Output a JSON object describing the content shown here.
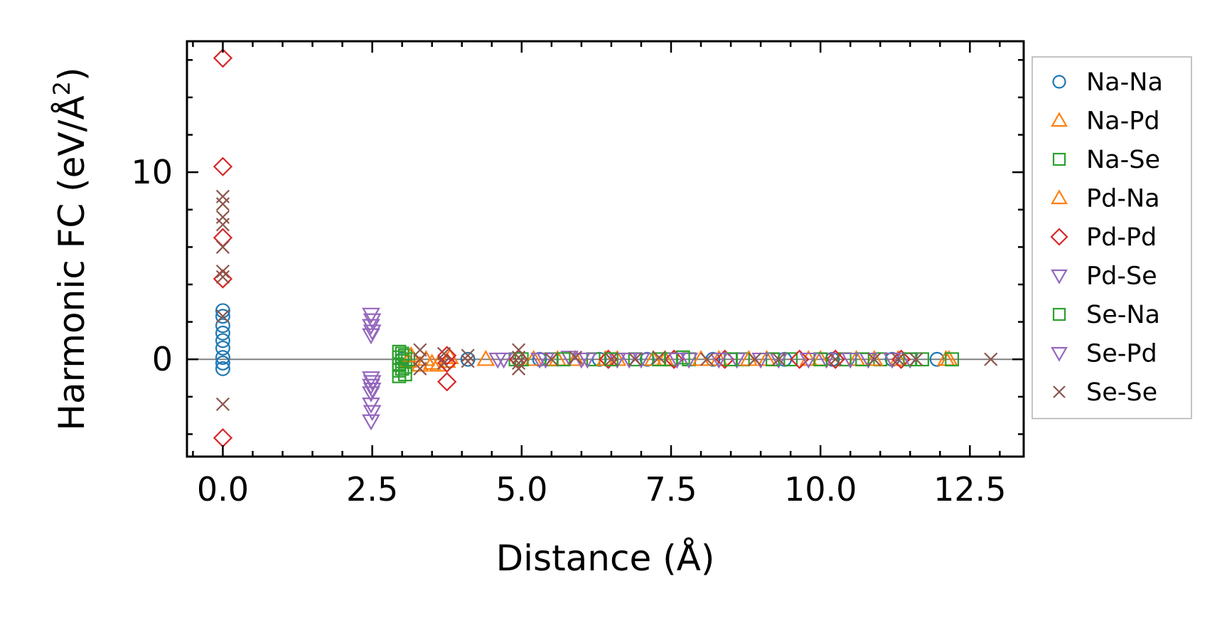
{
  "chart_data": {
    "type": "scatter",
    "title": "",
    "xlabel": "Distance (Å)",
    "ylabel_prefix": "Harmonic FC (eV/Å",
    "ylabel_sup": "2",
    "ylabel_suffix": ")",
    "xlim": [
      -0.6,
      13.4
    ],
    "ylim": [
      -5.2,
      17.0
    ],
    "xticks": [
      0.0,
      2.5,
      5.0,
      7.5,
      10.0,
      12.5
    ],
    "xtick_labels": [
      "0.0",
      "2.5",
      "5.0",
      "7.5",
      "10.0",
      "12.5"
    ],
    "yticks": [
      0,
      10
    ],
    "ytick_labels": [
      "0",
      "10"
    ],
    "grid": false,
    "zero_line": true,
    "legend_position": "right",
    "series": [
      {
        "name": "Na-Na",
        "marker": "circle",
        "color": "#1f77b4",
        "points": [
          [
            0,
            2.6
          ],
          [
            0,
            2.3
          ],
          [
            0,
            1.8
          ],
          [
            0,
            1.4
          ],
          [
            0,
            1.0
          ],
          [
            0,
            0.6
          ],
          [
            0,
            0.1
          ],
          [
            0,
            -0.2
          ],
          [
            0,
            -0.5
          ],
          [
            3.0,
            0.0
          ],
          [
            4.1,
            0.0
          ],
          [
            5.3,
            0.0
          ],
          [
            6.3,
            0.0
          ],
          [
            7.1,
            0.0
          ],
          [
            8.2,
            0.0
          ],
          [
            9.4,
            0.0
          ],
          [
            10.2,
            0.0
          ],
          [
            11.2,
            0.0
          ],
          [
            11.95,
            0.0
          ]
        ]
      },
      {
        "name": "Na-Pd",
        "marker": "triangle-up",
        "color": "#ff7f0e",
        "points": [
          [
            3.1,
            -0.1
          ],
          [
            3.3,
            -0.3
          ],
          [
            3.5,
            -0.2
          ],
          [
            3.75,
            -0.1
          ],
          [
            5.2,
            0.0
          ],
          [
            5.9,
            0.0
          ],
          [
            6.6,
            0.0
          ],
          [
            7.4,
            0.0
          ],
          [
            8.3,
            0.0
          ],
          [
            9.1,
            0.0
          ],
          [
            9.8,
            0.0
          ],
          [
            10.6,
            0.0
          ],
          [
            11.3,
            0.0
          ],
          [
            12.1,
            0.0
          ]
        ]
      },
      {
        "name": "Na-Se",
        "marker": "square",
        "color": "#2ca02c",
        "points": [
          [
            2.95,
            0.4
          ],
          [
            2.95,
            0.1
          ],
          [
            2.95,
            -0.3
          ],
          [
            2.95,
            -0.6
          ],
          [
            2.95,
            -0.9
          ],
          [
            3.05,
            0.2
          ],
          [
            3.05,
            -0.4
          ],
          [
            3.1,
            0.0
          ],
          [
            4.9,
            0.0
          ],
          [
            5.5,
            0.0
          ],
          [
            6.2,
            0.0
          ],
          [
            6.9,
            0.0
          ],
          [
            7.5,
            0.0
          ],
          [
            7.8,
            0.0
          ],
          [
            8.7,
            0.0
          ],
          [
            9.5,
            0.0
          ],
          [
            10.4,
            0.0
          ],
          [
            11.0,
            0.0
          ],
          [
            11.7,
            0.0
          ]
        ]
      },
      {
        "name": "Pd-Na",
        "marker": "triangle-up",
        "color": "#ff7f0e",
        "points": [
          [
            3.15,
            0.2
          ],
          [
            3.4,
            0.0
          ],
          [
            3.6,
            -0.3
          ],
          [
            3.8,
            0.1
          ],
          [
            4.4,
            0.0
          ],
          [
            5.6,
            0.0
          ],
          [
            6.4,
            0.0
          ],
          [
            7.2,
            0.0
          ],
          [
            8.0,
            0.0
          ],
          [
            8.8,
            0.0
          ],
          [
            10.0,
            0.0
          ],
          [
            10.9,
            0.0
          ],
          [
            12.15,
            0.0
          ]
        ]
      },
      {
        "name": "Pd-Pd",
        "marker": "diamond",
        "color": "#d62728",
        "points": [
          [
            0,
            16.1
          ],
          [
            0,
            10.3
          ],
          [
            0,
            6.5
          ],
          [
            0,
            4.3
          ],
          [
            0,
            -4.2
          ],
          [
            3.75,
            0.2
          ],
          [
            3.75,
            -0.2
          ],
          [
            3.75,
            -1.2
          ],
          [
            4.95,
            0.0
          ],
          [
            6.45,
            0.0
          ],
          [
            7.55,
            0.0
          ],
          [
            8.4,
            0.0
          ],
          [
            9.65,
            0.0
          ],
          [
            10.25,
            0.0
          ],
          [
            11.35,
            0.0
          ]
        ]
      },
      {
        "name": "Pd-Se",
        "marker": "triangle-down",
        "color": "#9467bd",
        "points": [
          [
            2.48,
            2.4
          ],
          [
            2.48,
            1.8
          ],
          [
            2.48,
            1.3
          ],
          [
            2.48,
            -1.0
          ],
          [
            2.48,
            -1.4
          ],
          [
            2.48,
            -1.8
          ],
          [
            2.48,
            -2.4
          ],
          [
            2.48,
            -3.3
          ],
          [
            4.6,
            0.0
          ],
          [
            5.3,
            0.0
          ],
          [
            5.8,
            0.1
          ],
          [
            6.1,
            0.0
          ],
          [
            6.6,
            0.0
          ],
          [
            7.0,
            0.0
          ],
          [
            7.8,
            0.0
          ],
          [
            8.6,
            0.0
          ],
          [
            9.3,
            0.0
          ],
          [
            10.1,
            0.0
          ],
          [
            10.8,
            0.0
          ],
          [
            11.5,
            0.0
          ]
        ]
      },
      {
        "name": "Se-Na",
        "marker": "square",
        "color": "#2ca02c",
        "points": [
          [
            3.0,
            0.3
          ],
          [
            3.0,
            -0.1
          ],
          [
            3.0,
            -0.5
          ],
          [
            3.05,
            -0.8
          ],
          [
            5.0,
            0.0
          ],
          [
            5.7,
            0.0
          ],
          [
            6.5,
            0.0
          ],
          [
            7.3,
            0.0
          ],
          [
            7.7,
            0.1
          ],
          [
            8.5,
            0.0
          ],
          [
            9.2,
            0.0
          ],
          [
            10.0,
            0.0
          ],
          [
            10.7,
            0.0
          ],
          [
            11.5,
            0.0
          ],
          [
            12.2,
            0.0
          ]
        ]
      },
      {
        "name": "Se-Pd",
        "marker": "triangle-down",
        "color": "#9467bd",
        "points": [
          [
            2.5,
            2.1
          ],
          [
            2.5,
            1.5
          ],
          [
            2.5,
            -1.2
          ],
          [
            2.5,
            -1.6
          ],
          [
            2.5,
            -2.8
          ],
          [
            4.7,
            0.0
          ],
          [
            5.4,
            0.0
          ],
          [
            6.0,
            0.0
          ],
          [
            6.8,
            0.0
          ],
          [
            7.6,
            0.0
          ],
          [
            8.3,
            0.0
          ],
          [
            9.0,
            0.0
          ],
          [
            9.8,
            0.0
          ],
          [
            10.5,
            0.0
          ],
          [
            11.2,
            0.0
          ]
        ]
      },
      {
        "name": "Se-Se",
        "marker": "x",
        "color": "#8c564b",
        "points": [
          [
            0,
            8.7
          ],
          [
            0,
            8.3
          ],
          [
            0,
            7.6
          ],
          [
            0,
            7.2
          ],
          [
            0,
            6.0
          ],
          [
            0,
            4.7
          ],
          [
            0,
            4.4
          ],
          [
            0,
            2.3
          ],
          [
            0,
            -2.4
          ],
          [
            3.3,
            0.5
          ],
          [
            3.3,
            0.0
          ],
          [
            3.3,
            -0.5
          ],
          [
            3.7,
            0.3
          ],
          [
            3.7,
            -0.2
          ],
          [
            4.1,
            0.2
          ],
          [
            4.1,
            -0.1
          ],
          [
            4.95,
            0.5
          ],
          [
            4.95,
            0.1
          ],
          [
            4.95,
            -0.2
          ],
          [
            4.95,
            -0.5
          ],
          [
            5.5,
            0.0
          ],
          [
            5.9,
            0.1
          ],
          [
            6.5,
            0.0
          ],
          [
            6.9,
            0.0
          ],
          [
            7.3,
            0.1
          ],
          [
            8.1,
            0.0
          ],
          [
            8.9,
            0.0
          ],
          [
            9.3,
            0.0
          ],
          [
            10.25,
            0.0
          ],
          [
            10.9,
            0.0
          ],
          [
            11.3,
            0.0
          ],
          [
            11.6,
            0.0
          ],
          [
            12.85,
            0.0
          ]
        ]
      }
    ]
  }
}
